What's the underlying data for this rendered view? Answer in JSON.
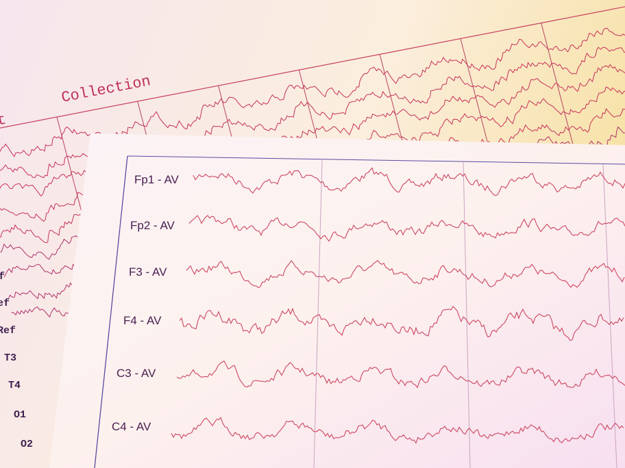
{
  "back_sheet": {
    "header": [
      "nt",
      "Collection"
    ],
    "labels": [
      "f",
      "ef",
      "Ref",
      "T3",
      "T4",
      "O1",
      "O2"
    ]
  },
  "front_sheet": {
    "channels": [
      "Fp1 - AV",
      "Fp2 - AV",
      "F3 - AV",
      "F4 - AV",
      "C3 - AV",
      "C4 - AV"
    ]
  }
}
